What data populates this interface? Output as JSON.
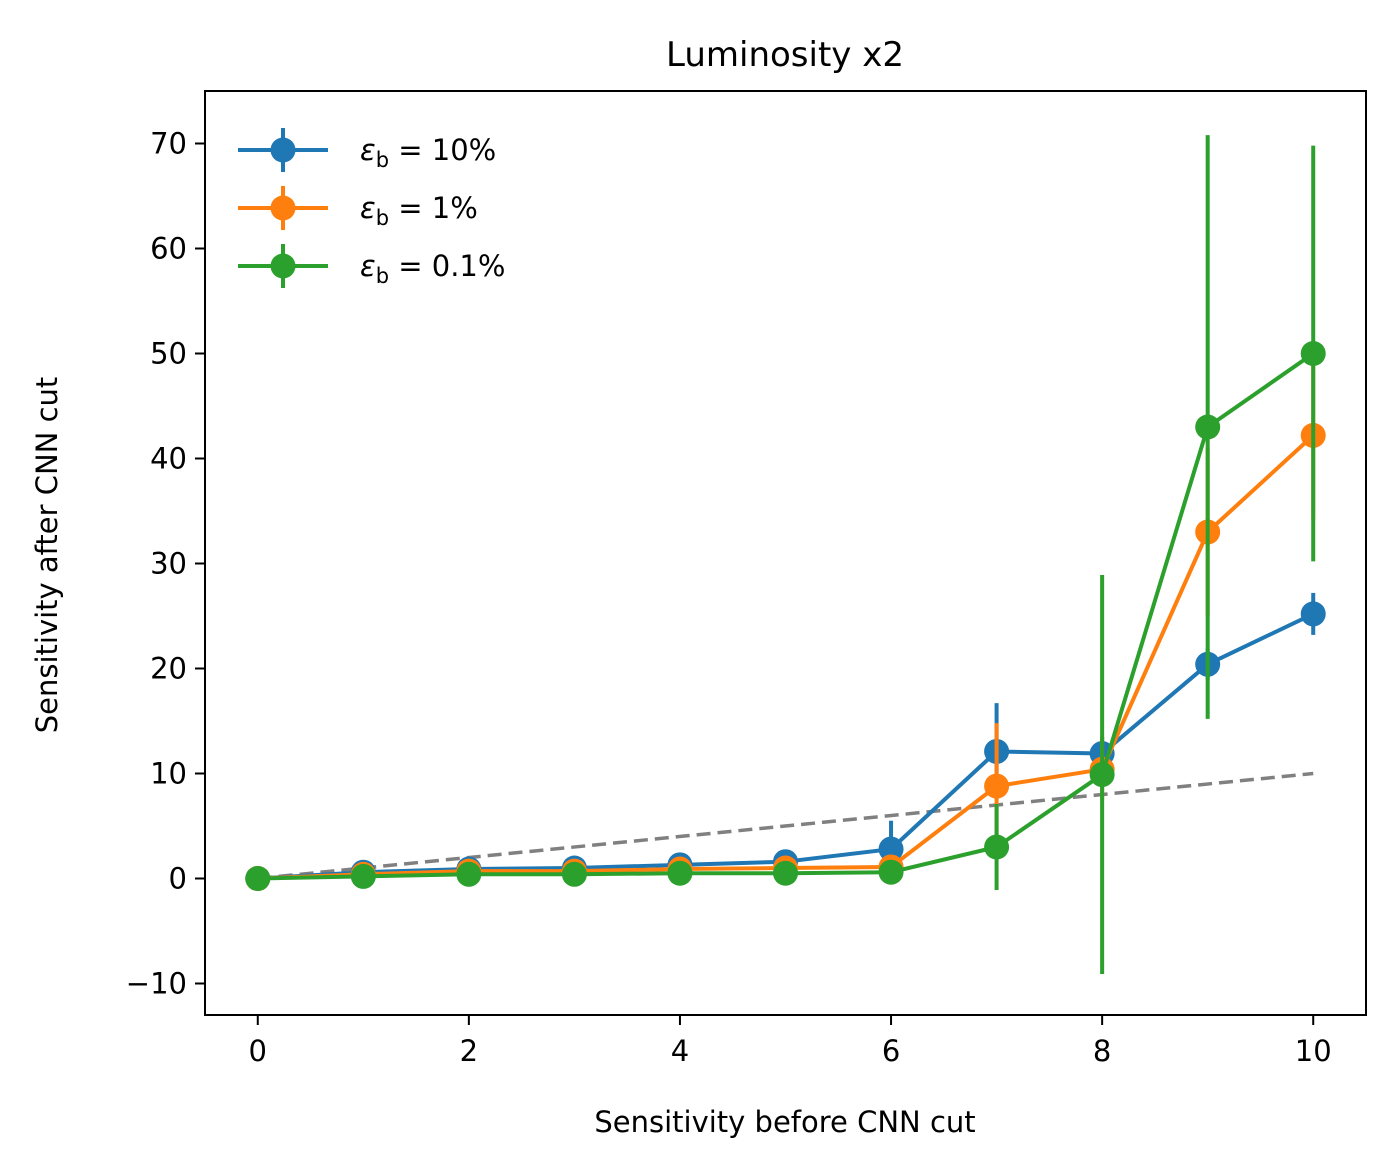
{
  "chart_data": {
    "type": "line",
    "title": "Luminosity x2",
    "xlabel": "Sensitivity before CNN cut",
    "ylabel": "Sensitivity after CNN cut",
    "xlim": [
      -0.5,
      10.5
    ],
    "ylim": [
      -13,
      75
    ],
    "xticks": [
      0,
      2,
      4,
      6,
      8,
      10
    ],
    "xtick_labels": [
      "0",
      "2",
      "4",
      "6",
      "8",
      "10"
    ],
    "yticks": [
      -10,
      0,
      10,
      20,
      30,
      40,
      50,
      60,
      70
    ],
    "ytick_labels": [
      "−10",
      "0",
      "10",
      "20",
      "30",
      "40",
      "50",
      "60",
      "70"
    ],
    "grid": false,
    "legend_position": "top-left",
    "x": [
      0,
      1,
      2,
      3,
      4,
      5,
      6,
      7,
      8,
      9,
      10
    ],
    "reference_line": {
      "x": [
        0,
        10
      ],
      "y": [
        0,
        10
      ],
      "color": "#808080",
      "style": "dashed"
    },
    "series": [
      {
        "name": "10%",
        "color": "#1f77b4",
        "values": [
          0,
          0.6,
          0.9,
          1.0,
          1.3,
          1.6,
          2.8,
          12.1,
          11.9,
          20.4,
          25.2
        ],
        "errors": [
          0,
          0.2,
          0.2,
          0.3,
          0.4,
          0.6,
          2.7,
          4.6,
          1.6,
          1.5,
          2.0
        ]
      },
      {
        "name": "1%",
        "color": "#ff7f0e",
        "values": [
          0,
          0.4,
          0.7,
          0.7,
          0.9,
          1.0,
          1.1,
          8.8,
          10.4,
          33.0,
          42.2
        ],
        "errors": [
          0,
          0.2,
          0.2,
          0.3,
          0.4,
          0.5,
          0.8,
          6.0,
          3.0,
          8.0,
          8.0
        ]
      },
      {
        "name": "0.1%",
        "color": "#2ca02c",
        "values": [
          0,
          0.2,
          0.4,
          0.4,
          0.5,
          0.5,
          0.6,
          3.0,
          9.9,
          43.0,
          50.0
        ],
        "errors": [
          0,
          0.2,
          0.2,
          0.3,
          0.3,
          0.4,
          0.5,
          4.1,
          19.0,
          27.8,
          19.8
        ]
      }
    ],
    "legend_symbol": "ε",
    "legend_subscript": "b",
    "legend_prefix": " = "
  }
}
